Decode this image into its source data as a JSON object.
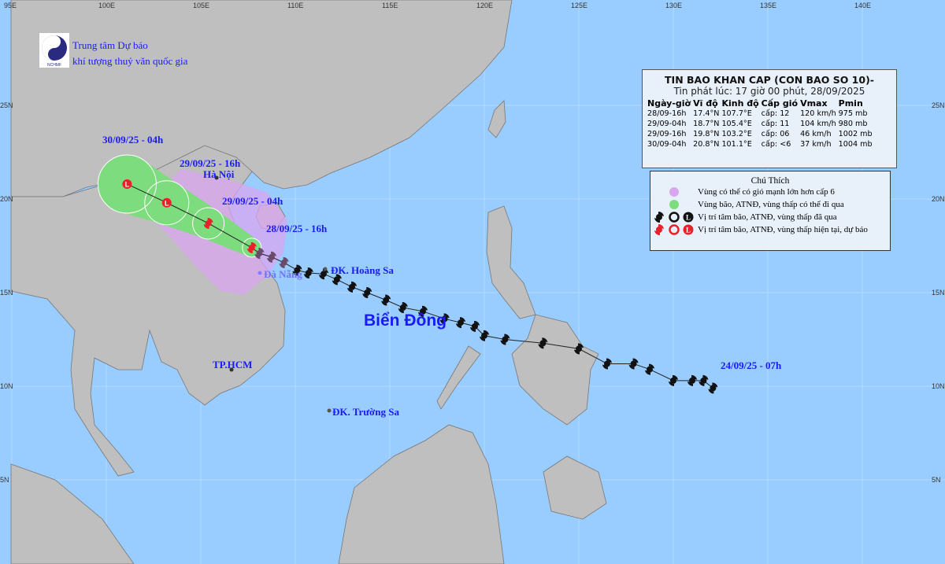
{
  "header": {
    "org_line1": "Trung tâm Dự báo",
    "org_line2": "khí tượng thuỷ văn quốc gia",
    "logo_text": "NCHMF"
  },
  "bulletin": {
    "title": "TIN BAO KHAN CAP (CON BAO SO 10)-",
    "issued": "Tin phát lúc: 17 giờ 00 phút, 28/09/2025",
    "columns": [
      "Ngày-giờ",
      "Vĩ độ",
      "Kinh độ",
      "Cấp gió",
      "Vmax",
      "Pmin"
    ],
    "rows": [
      [
        "28/09-16h",
        "17.4°N",
        "107.7°E",
        "cấp: 12",
        "120 km/h",
        "975 mb"
      ],
      [
        "29/09-04h",
        "18.7°N",
        "105.4°E",
        "cấp: 11",
        "104 km/h",
        "980 mb"
      ],
      [
        "29/09-16h",
        "19.8°N",
        "103.2°E",
        "cấp: 06",
        "46 km/h",
        "1002 mb"
      ],
      [
        "30/09-04h",
        "20.8°N",
        "101.1°E",
        "cấp: <6",
        "37 km/h",
        "1004 mb"
      ]
    ]
  },
  "legend": {
    "title": "Chú Thích",
    "items": [
      {
        "label": "Vùng có thể có gió mạnh lớn hơn cấp 6",
        "color": "#d9a6f0"
      },
      {
        "label": "Vùng bão, ATNĐ, vùng thấp có thể đi qua",
        "color": "#7ddc7d"
      },
      {
        "label": "Vị trí tâm bão, ATNĐ, vùng thấp đã qua",
        "color": "#111111"
      },
      {
        "label": "Vị trí tâm bão, ATNĐ, vùng thấp hiện tại, dự báo",
        "color": "#e8202a"
      }
    ]
  },
  "labels": {
    "f30": "30/09/25 - 04h",
    "f29_16": "29/09/25 - 16h",
    "f29_04": "29/09/25 - 04h",
    "f28": "28/09/25 - 16h",
    "start": "24/09/25 - 07h",
    "hanoi": "Hà Nội",
    "danang": "Đà Nẵng",
    "hoangsa": "ĐK. Hoàng Sa",
    "bien_dong": "Biển Đông",
    "tphcm": "TP.HCM",
    "truongsa": "ĐK. Trường Sa"
  },
  "axes": {
    "lon_labels": [
      "95E",
      "100E",
      "105E",
      "110E",
      "115E",
      "120E",
      "125E",
      "130E",
      "135E",
      "140E"
    ],
    "lat_labels": [
      "25N",
      "20N",
      "15N",
      "10N",
      "5N"
    ]
  },
  "track": {
    "past": [
      [
        132.1,
        9.9
      ],
      [
        131.6,
        10.3
      ],
      [
        131.0,
        10.3
      ],
      [
        130.0,
        10.3
      ],
      [
        128.75,
        10.9
      ],
      [
        127.9,
        11.2
      ],
      [
        126.5,
        11.2
      ],
      [
        125.0,
        12.0
      ],
      [
        123.1,
        12.3
      ],
      [
        121.1,
        12.5
      ],
      [
        120.0,
        12.7
      ],
      [
        119.5,
        13.2
      ],
      [
        118.75,
        13.4
      ],
      [
        117.9,
        13.6
      ],
      [
        116.75,
        14.0
      ],
      [
        115.7,
        14.2
      ],
      [
        114.8,
        14.6
      ],
      [
        113.8,
        15.0
      ],
      [
        113.0,
        15.3
      ],
      [
        112.2,
        15.7
      ],
      [
        111.5,
        16.0
      ],
      [
        110.7,
        16.05
      ],
      [
        110.1,
        16.2
      ],
      [
        109.4,
        16.6
      ],
      [
        108.75,
        16.9
      ],
      [
        108.1,
        17.1
      ]
    ],
    "forecast": [
      [
        107.7,
        17.4
      ],
      [
        105.4,
        18.7
      ],
      [
        103.2,
        19.8
      ],
      [
        101.1,
        20.8
      ]
    ]
  },
  "colors": {
    "sea": "#99ccff",
    "land": "#bfbfbf",
    "past": "#111111",
    "forecast": "#e8202a",
    "cone": "#7ddc7d",
    "wind_zone": "#d9a6f0"
  }
}
